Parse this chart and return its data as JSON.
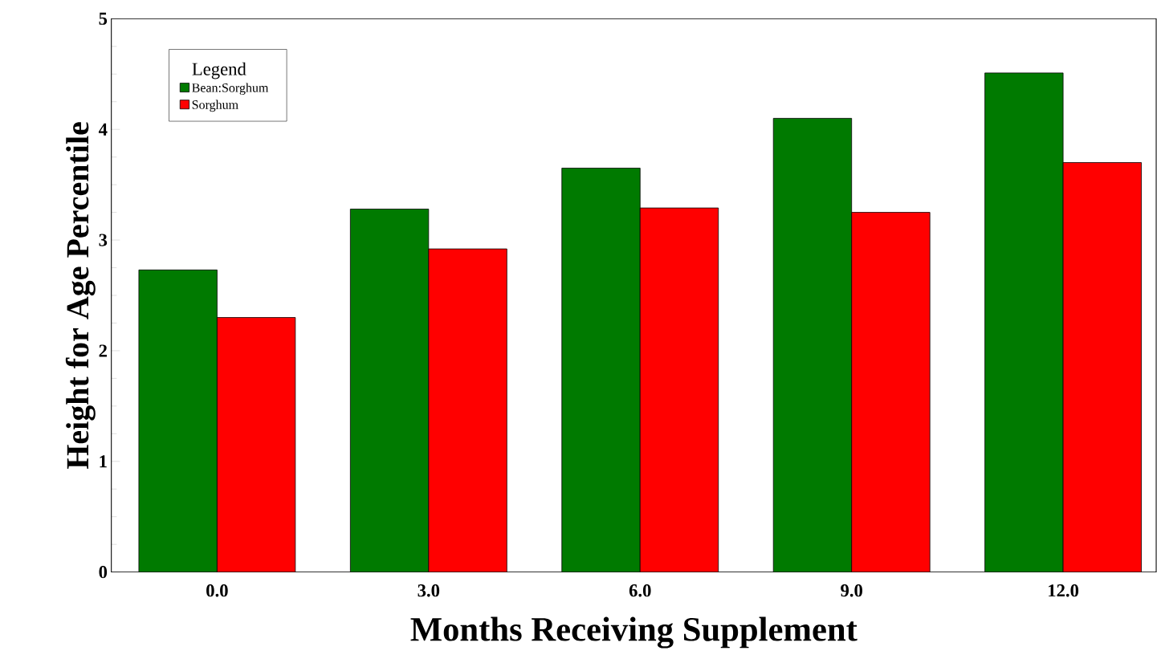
{
  "chart_data": {
    "type": "bar",
    "xlabel": "Months Receiving Supplement",
    "ylabel": "Height for Age Percentile",
    "legend_title": "Legend",
    "categories": [
      "0.0",
      "3.0",
      "6.0",
      "9.0",
      "12.0"
    ],
    "series": [
      {
        "name": "Bean:Sorghum",
        "color": "#007a00",
        "values": [
          2.73,
          3.28,
          3.65,
          4.1,
          4.51
        ]
      },
      {
        "name": "Sorghum",
        "color": "#ff0000",
        "values": [
          2.3,
          2.92,
          3.29,
          3.25,
          3.7
        ]
      }
    ],
    "ylim": [
      0,
      5
    ],
    "yticks": [
      0,
      1,
      2,
      3,
      4,
      5
    ],
    "grid": false,
    "legend": "top left"
  }
}
